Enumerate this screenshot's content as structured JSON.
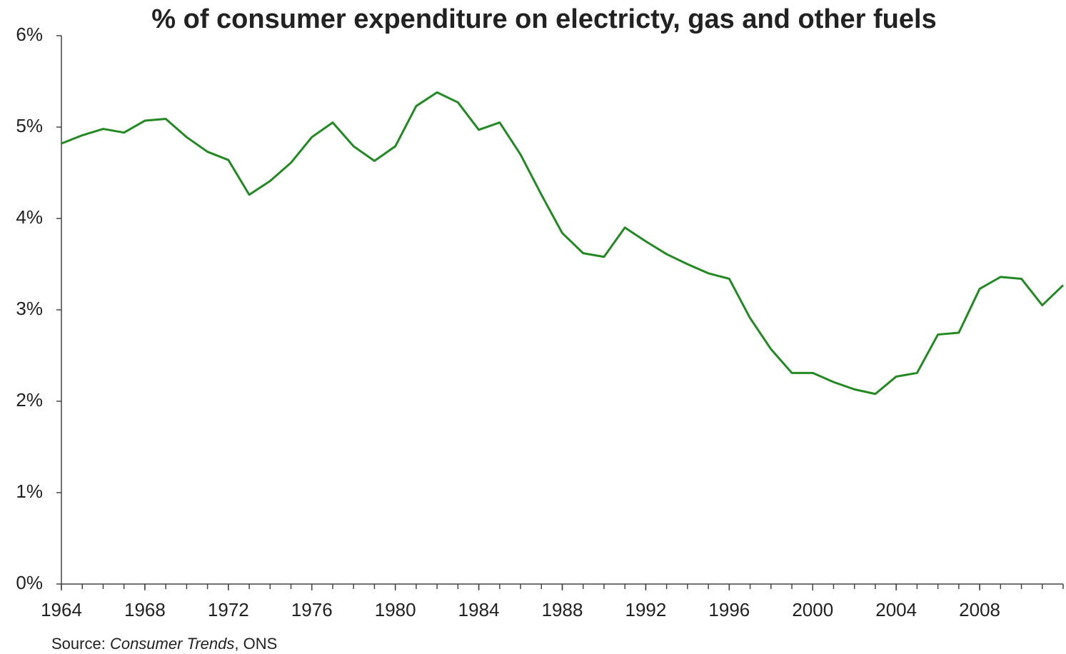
{
  "chart_data": {
    "type": "line",
    "title": "% of consumer expenditure on electricty, gas and other fuels",
    "source": [
      "Source:",
      "Consumer Trends",
      ", ONS"
    ],
    "x": [
      1964,
      1965,
      1966,
      1967,
      1968,
      1969,
      1970,
      1971,
      1972,
      1973,
      1974,
      1975,
      1976,
      1977,
      1978,
      1979,
      1980,
      1981,
      1982,
      1983,
      1984,
      1985,
      1986,
      1987,
      1988,
      1989,
      1990,
      1991,
      1992,
      1993,
      1994,
      1995,
      1996,
      1997,
      1998,
      1999,
      2000,
      2001,
      2002,
      2003,
      2004,
      2005,
      2006,
      2007,
      2008,
      2009,
      2010,
      2011,
      2012
    ],
    "series": [
      {
        "name": "Electricity, gas and other fuels",
        "color": "#238a23",
        "values": [
          4.82,
          4.91,
          4.98,
          4.94,
          5.07,
          5.09,
          4.89,
          4.73,
          4.64,
          4.26,
          4.41,
          4.61,
          4.89,
          5.05,
          4.79,
          4.63,
          4.79,
          5.23,
          5.38,
          5.27,
          4.97,
          5.05,
          4.7,
          4.26,
          3.84,
          3.62,
          3.58,
          3.9,
          3.75,
          3.61,
          3.5,
          3.4,
          3.34,
          2.91,
          2.57,
          2.31,
          2.31,
          2.21,
          2.13,
          2.08,
          2.27,
          2.31,
          2.73,
          2.75,
          3.23,
          3.36,
          3.34,
          3.05,
          3.27
        ]
      }
    ],
    "xlim": [
      1964,
      2012
    ],
    "xticks": [
      1964,
      1968,
      1972,
      1976,
      1980,
      1984,
      1988,
      1992,
      1996,
      2000,
      2004,
      2008
    ],
    "ylim": [
      0,
      6
    ],
    "yticks": [
      {
        "value": 0,
        "label": "0%"
      },
      {
        "value": 1,
        "label": "1%"
      },
      {
        "value": 2,
        "label": "2%"
      },
      {
        "value": 3,
        "label": "3%"
      },
      {
        "value": 4,
        "label": "4%"
      },
      {
        "value": 5,
        "label": "5%"
      },
      {
        "value": 6,
        "label": "6%"
      }
    ],
    "grid": false
  }
}
